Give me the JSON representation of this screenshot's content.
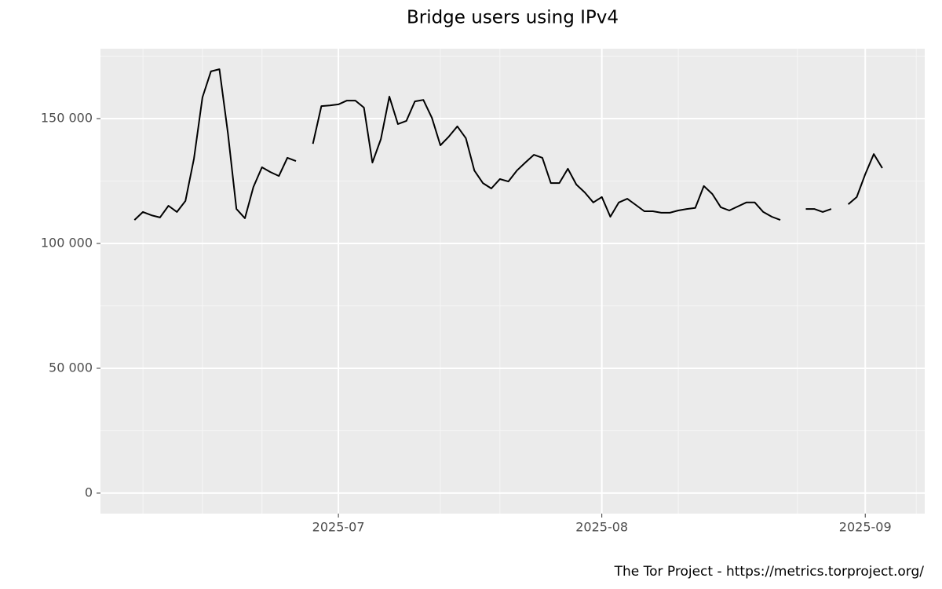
{
  "chart_data": {
    "type": "line",
    "title": "Bridge users using IPv4",
    "caption": "The Tor Project - https://metrics.torproject.org/",
    "x": [
      "2025-06-07",
      "2025-06-08",
      "2025-06-09",
      "2025-06-10",
      "2025-06-11",
      "2025-06-12",
      "2025-06-13",
      "2025-06-14",
      "2025-06-15",
      "2025-06-16",
      "2025-06-17",
      "2025-06-18",
      "2025-06-19",
      "2025-06-20",
      "2025-06-21",
      "2025-06-22",
      "2025-06-23",
      "2025-06-24",
      "2025-06-25",
      "2025-06-26",
      "2025-06-27",
      "2025-06-28",
      "2025-06-29",
      "2025-06-30",
      "2025-07-01",
      "2025-07-02",
      "2025-07-03",
      "2025-07-04",
      "2025-07-05",
      "2025-07-06",
      "2025-07-07",
      "2025-07-08",
      "2025-07-09",
      "2025-07-10",
      "2025-07-11",
      "2025-07-12",
      "2025-07-13",
      "2025-07-14",
      "2025-07-15",
      "2025-07-16",
      "2025-07-17",
      "2025-07-18",
      "2025-07-19",
      "2025-07-20",
      "2025-07-21",
      "2025-07-22",
      "2025-07-23",
      "2025-07-24",
      "2025-07-25",
      "2025-07-26",
      "2025-07-27",
      "2025-07-28",
      "2025-07-29",
      "2025-07-30",
      "2025-07-31",
      "2025-08-01",
      "2025-08-02",
      "2025-08-03",
      "2025-08-04",
      "2025-08-05",
      "2025-08-06",
      "2025-08-07",
      "2025-08-08",
      "2025-08-09",
      "2025-08-10",
      "2025-08-11",
      "2025-08-12",
      "2025-08-13",
      "2025-08-14",
      "2025-08-15",
      "2025-08-16",
      "2025-08-17",
      "2025-08-18",
      "2025-08-19",
      "2025-08-20",
      "2025-08-21",
      "2025-08-22",
      "2025-08-23",
      "2025-08-24",
      "2025-08-25",
      "2025-08-26",
      "2025-08-27",
      "2025-08-28",
      "2025-08-29",
      "2025-08-30",
      "2025-08-31",
      "2025-09-01",
      "2025-09-02",
      "2025-09-03"
    ],
    "series": [
      {
        "color": "#000000",
        "values": [
          109400,
          112600,
          111300,
          110400,
          115100,
          112600,
          117000,
          134000,
          158500,
          168900,
          169800,
          144000,
          113800,
          110100,
          122600,
          130500,
          128600,
          127000,
          134300,
          133000,
          null,
          139900,
          155000,
          155300,
          155700,
          157200,
          157200,
          154400,
          132400,
          141800,
          158800,
          147800,
          149100,
          156900,
          157500,
          150300,
          139300,
          142800,
          146900,
          142100,
          129200,
          124200,
          122000,
          125800,
          124800,
          129200,
          132400,
          135500,
          134300,
          124200,
          124200,
          129900,
          123600,
          120400,
          116400,
          118600,
          110700,
          116400,
          117900,
          115400,
          112900,
          112900,
          112300,
          112300,
          113200,
          113800,
          114200,
          123000,
          119800,
          114500,
          113200,
          114800,
          116400,
          116400,
          112600,
          110700,
          109400,
          null,
          null,
          113800,
          113800,
          112600,
          113800,
          null,
          115700,
          118600,
          127700,
          135800,
          130200
        ]
      }
    ],
    "xlim": [
      "2025-06-03",
      "2025-09-08"
    ],
    "xticks": [
      {
        "value": "2025-07-01",
        "label": "2025-07"
      },
      {
        "value": "2025-08-01",
        "label": "2025-08"
      },
      {
        "value": "2025-09-01",
        "label": "2025-09"
      }
    ],
    "xminor": [
      "2025-06-08",
      "2025-06-15",
      "2025-06-22",
      "2025-07-13",
      "2025-07-20",
      "2025-08-10",
      "2025-08-24",
      "2025-09-07"
    ],
    "ylim": [
      -8200,
      178000
    ],
    "yticks": [
      0,
      {
        "value": 50000,
        "label": "50 000"
      },
      {
        "value": 100000,
        "label": "100 000"
      },
      {
        "value": 150000,
        "label": "150 000"
      }
    ],
    "yminor": [
      25000,
      75000,
      125000,
      175000
    ],
    "grid": true
  }
}
